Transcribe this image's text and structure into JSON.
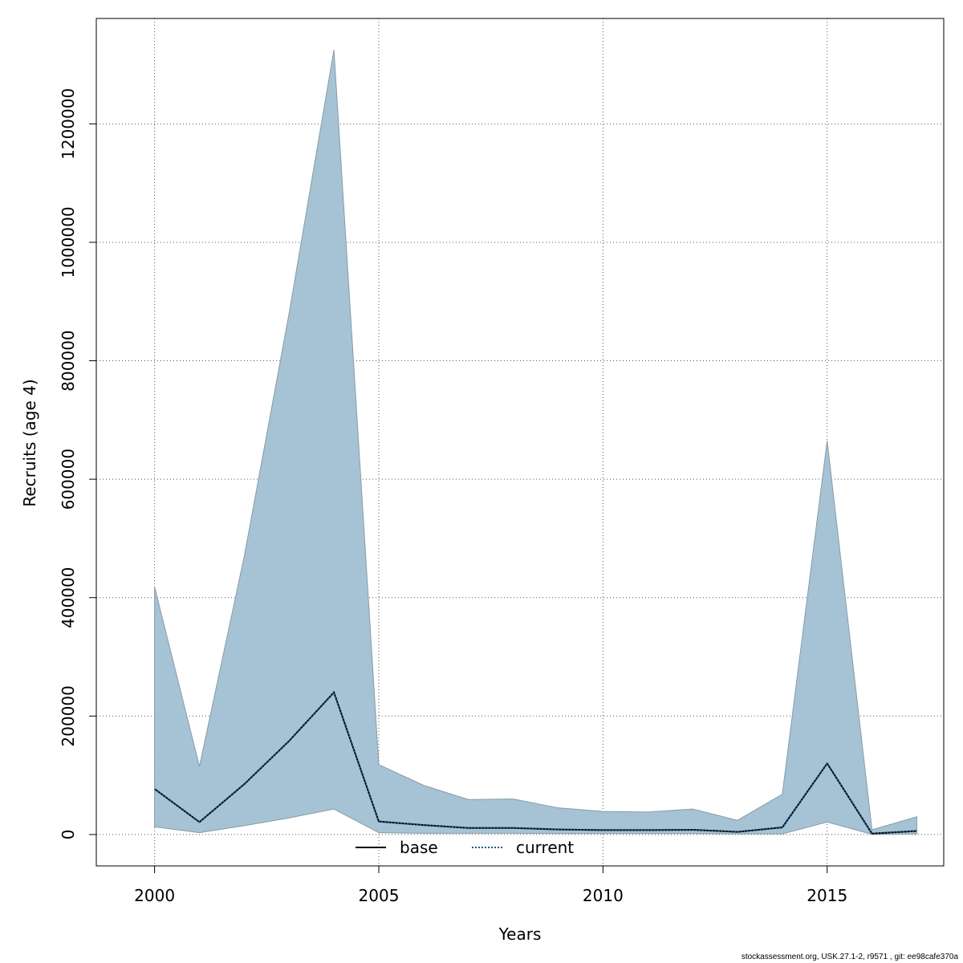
{
  "chart_data": {
    "type": "area",
    "xlabel": "Years",
    "ylabel": "Recruits (age 4)",
    "xlim": [
      1998.7,
      2017.6
    ],
    "ylim": [
      -53000,
      1378000
    ],
    "x_ticks": [
      2000,
      2005,
      2010,
      2015
    ],
    "y_ticks": [
      0,
      200000,
      400000,
      600000,
      800000,
      1000000,
      1200000
    ],
    "x_tick_labels": [
      "2000",
      "2005",
      "2010",
      "2015"
    ],
    "y_tick_labels": [
      "0",
      "200000",
      "400000",
      "600000",
      "800000",
      "1000000",
      "1200000"
    ],
    "grid": true,
    "legend_position": "bottom",
    "x": [
      2000,
      2001,
      2002,
      2003,
      2004,
      2005,
      2006,
      2007,
      2008,
      2009,
      2010,
      2011,
      2012,
      2013,
      2014,
      2015,
      2016,
      2017
    ],
    "band": {
      "upper": [
        418000,
        115000,
        470000,
        880000,
        1325000,
        118000,
        83000,
        59000,
        60000,
        45000,
        39000,
        38000,
        43000,
        24000,
        68000,
        665000,
        8000,
        30000
      ],
      "lower": [
        13000,
        3000,
        15000,
        28000,
        43000,
        3000,
        2000,
        2000,
        2000,
        1500,
        1500,
        1500,
        1500,
        1000,
        1000,
        21000,
        300,
        1000
      ],
      "color": "#a5c3d4",
      "stroke": "#8a9ba5"
    },
    "series": [
      {
        "name": "base",
        "values": [
          77000,
          21000,
          85000,
          158000,
          240000,
          22000,
          16000,
          11000,
          11000,
          8500,
          7500,
          7500,
          8000,
          4500,
          12000,
          120000,
          1500,
          6000
        ],
        "color": "#000000",
        "dash": "solid"
      },
      {
        "name": "current",
        "values": [
          77000,
          21000,
          85000,
          158000,
          240000,
          22000,
          16000,
          11000,
          11000,
          8500,
          7500,
          7500,
          8000,
          4500,
          12000,
          120000,
          1500,
          6000
        ],
        "color": "#1f5a8a",
        "dash": "dotted"
      }
    ]
  },
  "legend": {
    "base_label": "base",
    "current_label": "current"
  },
  "footer": {
    "text": "stockassessment.org, USK.27.1-2, r9571 , git: ee98cafe370a"
  }
}
